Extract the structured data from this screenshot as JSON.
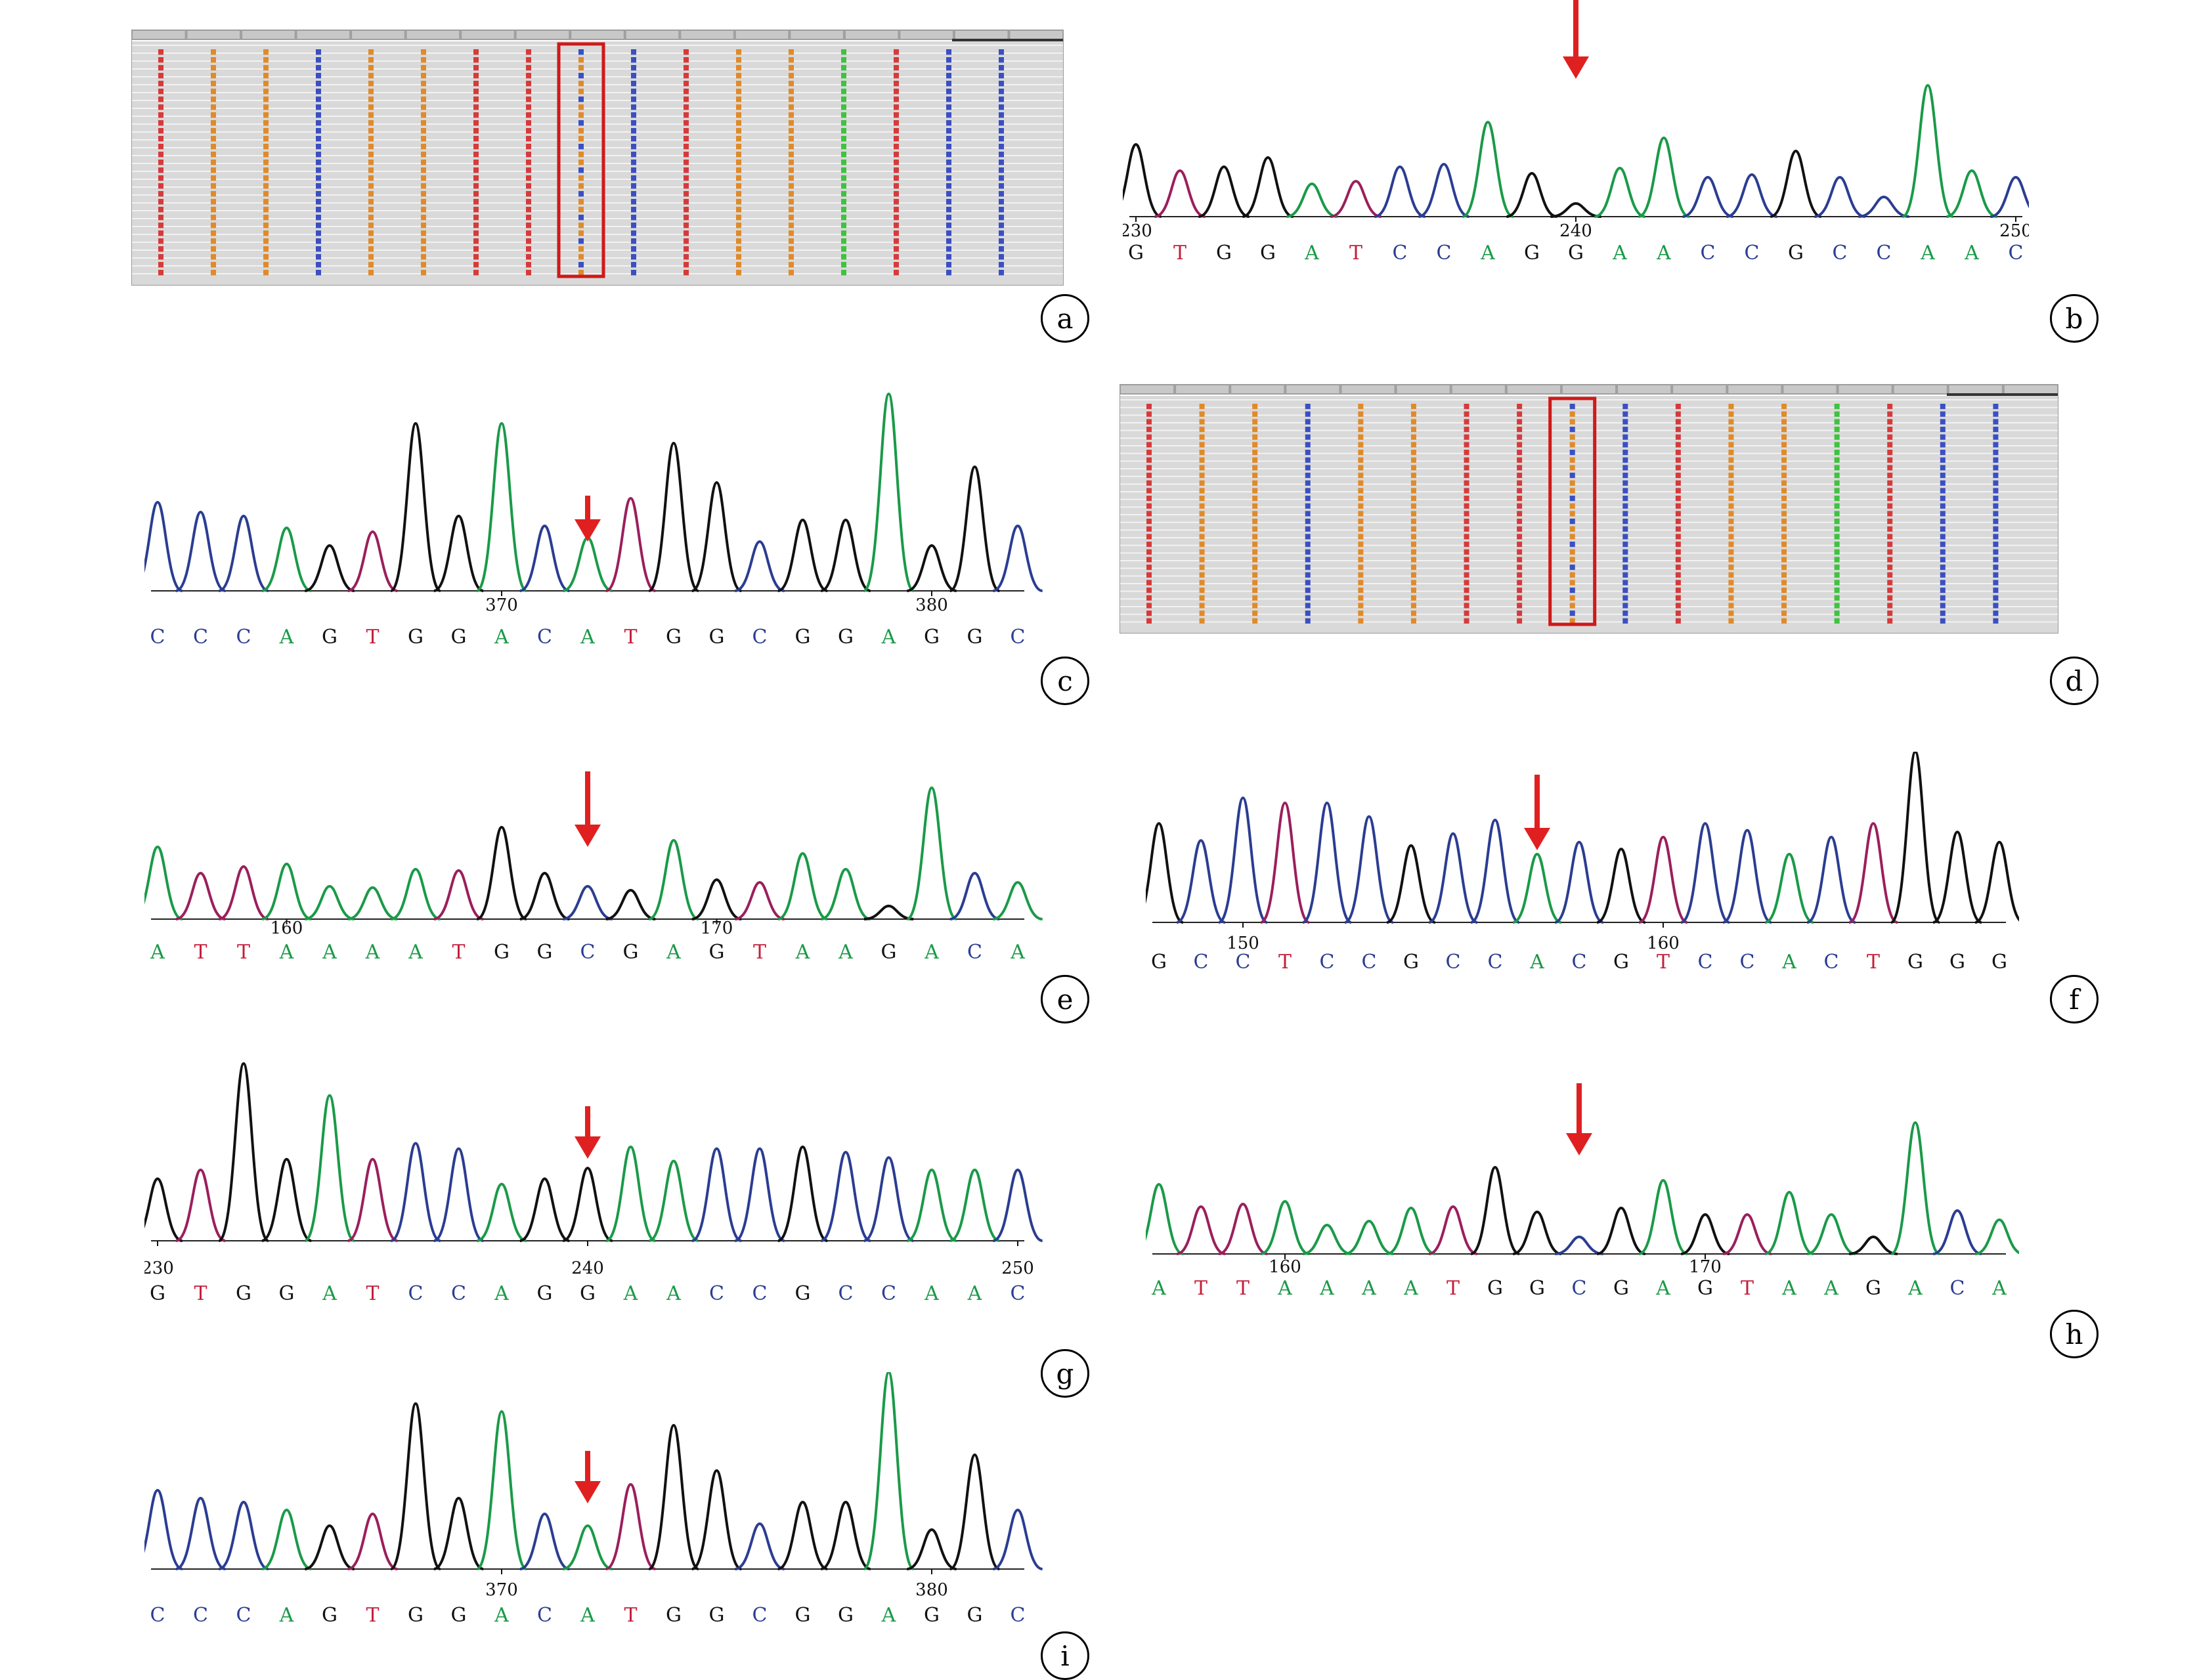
{
  "colors": {
    "A": "#1a9a48",
    "T": "#c41e3a",
    "G": "#111111",
    "C": "#2b3d92",
    "marker": "#e02020",
    "pink": "#b0207a"
  },
  "panels": [
    {
      "id": "a",
      "label": "a",
      "kind": "alignment"
    },
    {
      "id": "b",
      "label": "b",
      "kind": "trace",
      "sequence": "GTGGATCCAGGAACCGCCAAC",
      "start": 230,
      "ticks": [
        {
          "label": "230",
          "index": 0
        },
        {
          "label": "240",
          "index": 10
        },
        {
          "label": "250",
          "index": 20
        }
      ],
      "heights": [
        0.55,
        0.35,
        0.38,
        0.45,
        0.25,
        0.27,
        0.38,
        0.4,
        0.72,
        0.33,
        0.1,
        0.37,
        0.6,
        0.3,
        0.32,
        0.5,
        0.3,
        0.15,
        1.0,
        0.35,
        0.3
      ],
      "arrow_index": 10,
      "arrow_position": "above"
    },
    {
      "id": "c",
      "label": "c",
      "kind": "trace",
      "sequence": "CCCAGTGGACATGGCGGAGGC",
      "start": 362,
      "ticks": [
        {
          "label": "370",
          "index": 8
        },
        {
          "label": "380",
          "index": 18
        }
      ],
      "heights": [
        0.45,
        0.4,
        0.38,
        0.32,
        0.23,
        0.3,
        0.85,
        0.38,
        0.85,
        0.33,
        0.27,
        0.47,
        0.75,
        0.55,
        0.25,
        0.36,
        0.36,
        1.0,
        0.23,
        0.63,
        0.33
      ],
      "arrow_index": 10,
      "arrow_position": "inline"
    },
    {
      "id": "d",
      "label": "d",
      "kind": "alignment"
    },
    {
      "id": "e",
      "label": "e",
      "kind": "trace",
      "sequence": "ATTAAAATGGCGAGTAAGACA",
      "start": 157,
      "ticks": [
        {
          "label": "160",
          "index": 3
        },
        {
          "label": "170",
          "index": 13
        }
      ],
      "heights": [
        0.55,
        0.35,
        0.4,
        0.42,
        0.25,
        0.24,
        0.38,
        0.37,
        0.7,
        0.35,
        0.25,
        0.22,
        0.6,
        0.3,
        0.28,
        0.5,
        0.38,
        0.1,
        1.0,
        0.35,
        0.28
      ],
      "arrow_index": 10,
      "arrow_position": "above"
    },
    {
      "id": "f",
      "label": "f",
      "kind": "trace",
      "sequence": "GCCTCCGCCACGTCCACTGGG",
      "start": 148,
      "ticks": [
        {
          "label": "150",
          "index": 2
        },
        {
          "label": "160",
          "index": 12
        }
      ],
      "heights": [
        0.58,
        0.48,
        0.73,
        0.7,
        0.7,
        0.62,
        0.45,
        0.52,
        0.6,
        0.4,
        0.47,
        0.43,
        0.5,
        0.58,
        0.54,
        0.4,
        0.5,
        0.58,
        1.0,
        0.53,
        0.47
      ],
      "arrow_index": 9,
      "arrow_position": "inline"
    },
    {
      "id": "g",
      "label": "g",
      "kind": "trace",
      "sequence": "GTGGATCCAGGAACCGCCAAC",
      "start": 230,
      "ticks": [
        {
          "label": "230",
          "index": 0
        },
        {
          "label": "240",
          "index": 10
        },
        {
          "label": "250",
          "index": 20
        }
      ],
      "heights": [
        0.35,
        0.4,
        1.0,
        0.46,
        0.82,
        0.46,
        0.55,
        0.52,
        0.32,
        0.35,
        0.41,
        0.53,
        0.45,
        0.52,
        0.52,
        0.53,
        0.5,
        0.47,
        0.4,
        0.4,
        0.4
      ],
      "arrow_index": 10,
      "arrow_position": "inline"
    },
    {
      "id": "h",
      "label": "h",
      "kind": "trace",
      "sequence": "ATTAAAATGGCGAGTAAGACA",
      "start": 157,
      "ticks": [
        {
          "label": "160",
          "index": 3
        },
        {
          "label": "170",
          "index": 13
        }
      ],
      "heights": [
        0.53,
        0.36,
        0.38,
        0.4,
        0.22,
        0.25,
        0.35,
        0.36,
        0.66,
        0.32,
        0.13,
        0.35,
        0.56,
        0.3,
        0.3,
        0.47,
        0.3,
        0.13,
        1.0,
        0.33,
        0.26
      ],
      "arrow_index": 10,
      "arrow_position": "above"
    },
    {
      "id": "i",
      "label": "i",
      "kind": "trace",
      "sequence": "CCCAGTGGACATGGCGGAGGC",
      "start": 362,
      "ticks": [
        {
          "label": "370",
          "index": 8
        },
        {
          "label": "380",
          "index": 18
        }
      ],
      "heights": [
        0.4,
        0.36,
        0.34,
        0.3,
        0.22,
        0.28,
        0.84,
        0.36,
        0.8,
        0.28,
        0.22,
        0.43,
        0.73,
        0.5,
        0.23,
        0.34,
        0.34,
        1.0,
        0.2,
        0.58,
        0.3
      ],
      "arrow_index": 10,
      "arrow_position": "inline"
    }
  ]
}
